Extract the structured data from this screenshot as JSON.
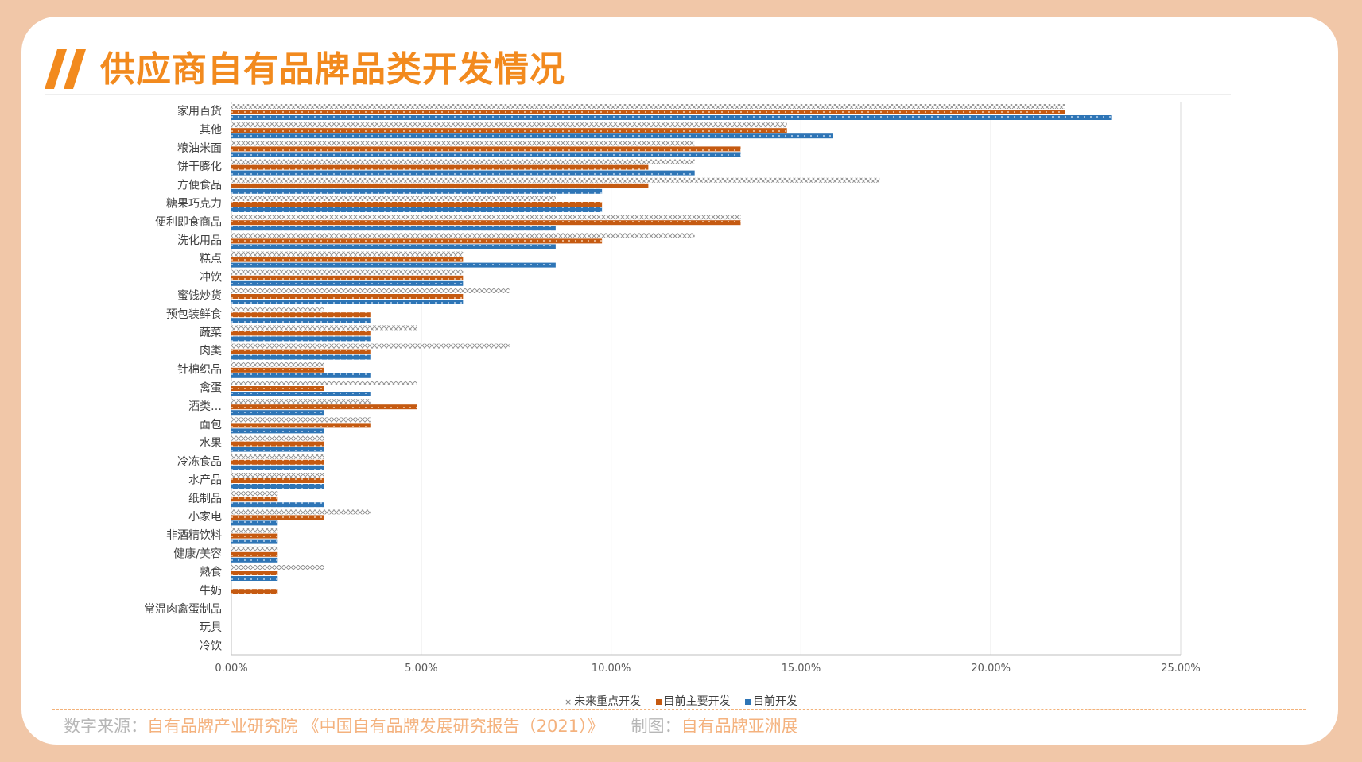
{
  "header": {
    "title": "供应商自有品牌品类开发情况"
  },
  "colors": {
    "future": "#8c8c8c",
    "main": "#c55a11",
    "current": "#2e75b6",
    "accent": "#f28a1e",
    "background": "#f1c7a8"
  },
  "chart_data": {
    "type": "bar",
    "orientation": "horizontal",
    "categories": [
      "家用百货",
      "其他",
      "粮油米面",
      "饼干膨化",
      "方便食品",
      "糖果巧克力",
      "便利即食商品",
      "洗化用品",
      "糕点",
      "冲饮",
      "蜜饯炒货",
      "预包装鲜食",
      "蔬菜",
      "肉类",
      "针棉织品",
      "禽蛋",
      "酒类…",
      "面包",
      "水果",
      "冷冻食品",
      "水产品",
      "纸制品",
      "小家电",
      "非酒精饮料",
      "健康/美容",
      "熟食",
      "牛奶",
      "常温肉禽蛋制品",
      "玩具",
      "冷饮"
    ],
    "series": [
      {
        "name": "未来重点开发",
        "values": [
          21.95,
          14.63,
          12.2,
          12.2,
          17.07,
          8.54,
          13.41,
          12.2,
          6.1,
          6.1,
          7.32,
          2.44,
          4.88,
          7.32,
          2.44,
          4.88,
          3.66,
          3.66,
          2.44,
          2.44,
          2.44,
          1.22,
          3.66,
          1.22,
          1.22,
          2.44,
          0,
          0,
          0,
          0
        ]
      },
      {
        "name": "目前主要开发",
        "values": [
          21.95,
          14.63,
          13.41,
          10.98,
          10.98,
          9.76,
          13.41,
          9.76,
          6.1,
          6.1,
          6.1,
          3.66,
          3.66,
          3.66,
          2.44,
          2.44,
          4.88,
          3.66,
          2.44,
          2.44,
          2.44,
          1.22,
          2.44,
          1.22,
          1.22,
          1.22,
          1.22,
          0,
          0,
          0
        ]
      },
      {
        "name": "目前开发",
        "values": [
          23.17,
          15.85,
          13.41,
          12.2,
          9.76,
          9.76,
          8.54,
          8.54,
          8.54,
          6.1,
          6.1,
          3.66,
          3.66,
          3.66,
          3.66,
          3.66,
          2.44,
          2.44,
          2.44,
          2.44,
          2.44,
          2.44,
          1.22,
          1.22,
          1.22,
          1.22,
          0,
          0,
          0,
          0
        ]
      }
    ],
    "xlim": [
      0,
      25
    ],
    "xticks": [
      "0.00%",
      "5.00%",
      "10.00%",
      "15.00%",
      "20.00%",
      "25.00%"
    ],
    "grid": true,
    "legend_position": "bottom"
  },
  "legend": {
    "future": "未来重点开发",
    "main": "目前主要开发",
    "current": "目前开发"
  },
  "footer": {
    "source_label": "数字来源：",
    "source_value": "自有品牌产业研究院 《中国自有品牌发展研究报告（2021）》",
    "credit_label": "制图：",
    "credit_value": "自有品牌亚洲展"
  }
}
